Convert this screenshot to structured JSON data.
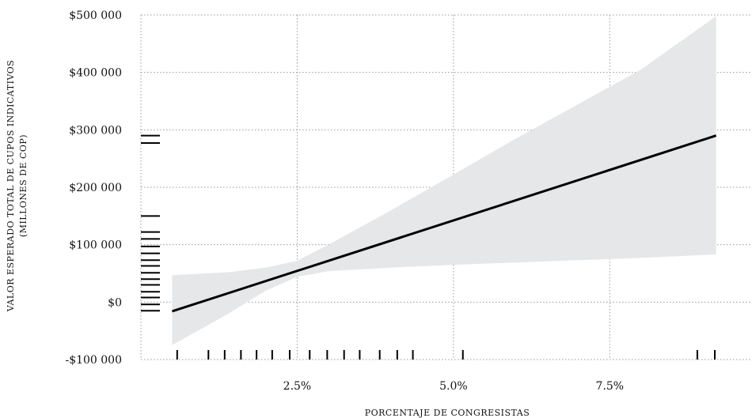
{
  "chart_data": {
    "type": "line",
    "title": "",
    "xlabel": "PORCENTAJE DE CONGRESISTAS",
    "ylabel_lines": [
      "VALOR ESPERADO TOTAL DE CUPOS INDICATIVOS",
      "(MILLONES DE COP)"
    ],
    "xlim": [
      0,
      9.8
    ],
    "ylim": [
      -100000,
      500000
    ],
    "x_ticks": [
      {
        "value": 2.5,
        "label": "2.5%"
      },
      {
        "value": 5.0,
        "label": "5.0%"
      },
      {
        "value": 7.5,
        "label": "7.5%"
      }
    ],
    "y_ticks": [
      {
        "value": -100000,
        "label": "-$100 000"
      },
      {
        "value": 0,
        "label": "$0"
      },
      {
        "value": 100000,
        "label": "$100 000"
      },
      {
        "value": 200000,
        "label": "$200 000"
      },
      {
        "value": 300000,
        "label": "$300 000"
      },
      {
        "value": 400000,
        "label": "$400 000"
      },
      {
        "value": 500000,
        "label": "$500 000"
      }
    ],
    "grid": true,
    "series": [
      {
        "type": "line",
        "color": "#000000",
        "x": [
          0.5,
          9.2
        ],
        "y": [
          -16000,
          290000
        ]
      },
      {
        "type": "confidence_band",
        "color": "#e6e7e8",
        "x": [
          0.5,
          1.4,
          2.0,
          2.5,
          3.0,
          4.0,
          5.0,
          6.0,
          7.0,
          8.0,
          9.2
        ],
        "upper": [
          47000,
          52000,
          60000,
          72000,
          100000,
          160000,
          222000,
          285000,
          345000,
          405000,
          498000
        ],
        "lower": [
          -75000,
          -20000,
          20000,
          44000,
          54000,
          60000,
          65000,
          69000,
          73000,
          77000,
          83000
        ]
      }
    ],
    "rug_x": [
      0.58,
      1.08,
      1.34,
      1.6,
      1.85,
      2.1,
      2.38,
      2.7,
      2.98,
      3.25,
      3.5,
      3.82,
      4.1,
      4.35,
      5.15,
      8.9,
      9.18
    ],
    "rug_y": [
      -15000,
      -4000,
      8000,
      18000,
      30000,
      40000,
      51000,
      63000,
      73000,
      85000,
      97000,
      110000,
      122000,
      150000,
      277000,
      290000
    ]
  }
}
